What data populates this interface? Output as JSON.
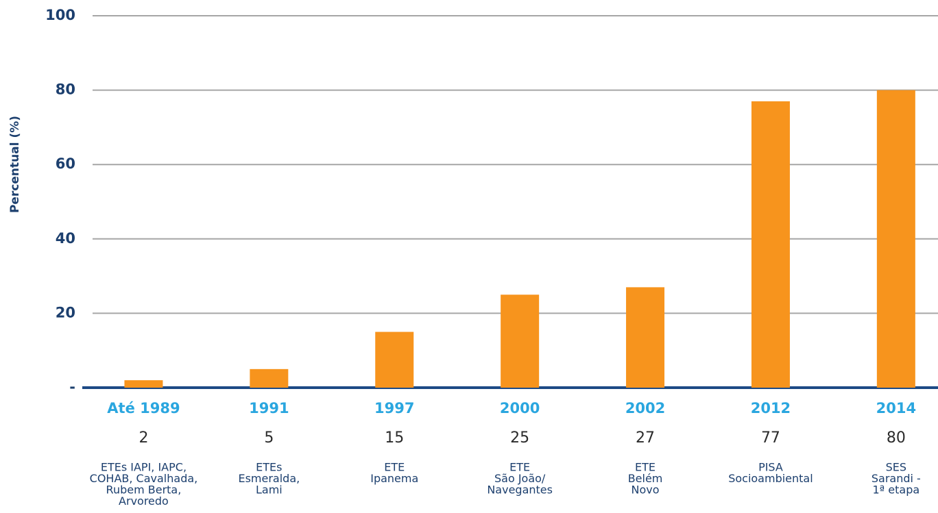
{
  "chart_data": {
    "type": "bar",
    "y_label": "Percentual (%)",
    "categories": [
      "Até 1989",
      "1991",
      "1997",
      "2000",
      "2002",
      "2012",
      "2014"
    ],
    "values": [
      2,
      5,
      15,
      25,
      27,
      77,
      80
    ],
    "descriptions": [
      [
        "ETEs IAPI, IAPC,",
        "COHAB, Cavalhada,",
        "Rubem Berta,",
        "Arvoredo"
      ],
      [
        "ETEs",
        "Esmeralda,",
        "Lami"
      ],
      [
        "ETE",
        "Ipanema"
      ],
      [
        "ETE",
        "São João/",
        "Navegantes"
      ],
      [
        "ETE",
        "Belém",
        "Novo"
      ],
      [
        "PISA",
        "Socioambiental"
      ],
      [
        "SES",
        "Sarandi -",
        "1ª etapa"
      ]
    ],
    "color": "#f7941d",
    "ylim": [
      0,
      100
    ],
    "yticks": [
      {
        "value": 0,
        "label": "-"
      },
      20,
      40,
      60,
      80,
      100
    ],
    "grid": true
  }
}
